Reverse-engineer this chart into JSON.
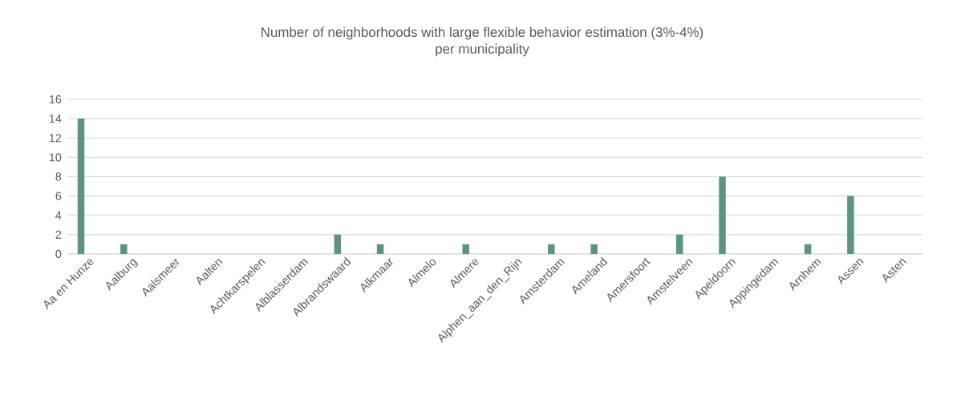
{
  "chart_data": {
    "type": "bar",
    "title": "Number of neighborhoods with large flexible behavior estimation (3%-4%)\nper municipality",
    "categories": [
      "Aa en Hunze",
      "Aalburg",
      "Aalsmeer",
      "Aalten",
      "Achtkarspelen",
      "Alblasserdam",
      "Albrandswaard",
      "Alkmaar",
      "Almelo",
      "Almere",
      "Alphen_aan_den_Rijn",
      "Amsterdam",
      "Ameland",
      "Amersfoort",
      "Amstelveen",
      "Apeldoorn",
      "Appingedam",
      "Arnhem",
      "Assen",
      "Asten"
    ],
    "values": [
      14,
      1,
      0,
      0,
      0,
      0,
      2,
      1,
      0,
      1,
      0,
      1,
      1,
      0,
      2,
      8,
      0,
      1,
      6,
      0
    ],
    "color": "#5b9580",
    "ylim": [
      0,
      16
    ],
    "yticks": [
      0,
      2,
      4,
      6,
      8,
      10,
      12,
      14,
      16
    ],
    "grid": "y"
  }
}
